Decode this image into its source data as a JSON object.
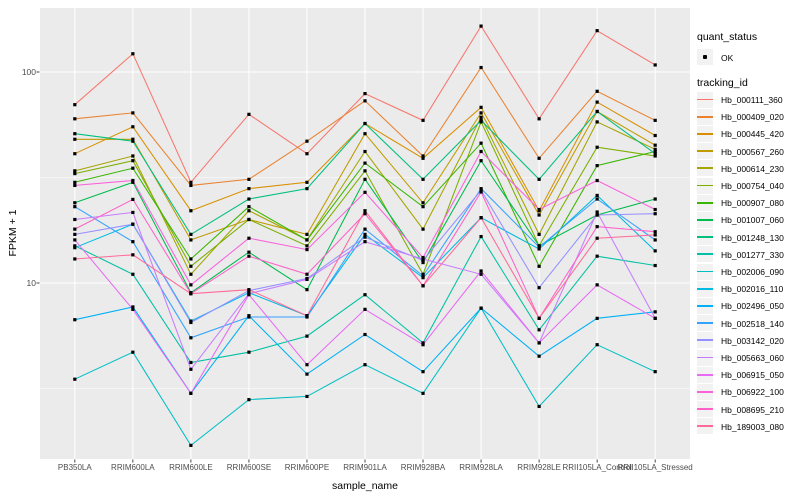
{
  "chart": {
    "y_axis": {
      "title": "FPKM + 1",
      "scale": "log10",
      "tick_labels": [
        "100",
        "10"
      ],
      "tick_values": [
        100,
        10
      ],
      "minor_gridline_values": [
        31.62,
        3.162
      ]
    },
    "x_axis": {
      "title": "sample_name"
    },
    "legend": {
      "quant_status": {
        "title": "quant_status",
        "items": [
          {
            "label": "OK",
            "marker": "black-point"
          }
        ]
      },
      "tracking_id": {
        "title": "tracking_id"
      }
    },
    "colors": {
      "panel_bg": "#EBEBEB",
      "grid": "#FFFFFF",
      "legend_key_bg": "#F2F2F2",
      "tick_label": "#4D4D4D",
      "axis_title": "#000000",
      "tick_mark": "#333333",
      "point_marker": "#000000"
    }
  },
  "chart_data": {
    "type": "line",
    "title": "",
    "xlabel": "sample_name",
    "ylabel": "FPKM + 1",
    "yscale": "log10",
    "ylim": [
      1.47,
      201
    ],
    "grid": true,
    "legend_position": "right",
    "point_marker": "small-black-square",
    "quant_status": "OK",
    "x": [
      "PB350LA",
      "RRIM600LA",
      "RRIM600LE",
      "RRIM600SE",
      "RRIM600PE",
      "RRIM901LA",
      "RRIM928BA",
      "RRIM928LA",
      "RRIM928LE",
      "RRII105LA_Control",
      "RRII105LA_Stressed"
    ],
    "series": [
      {
        "name": "Hb_000111_360",
        "color": "#F8766D",
        "values": [
          70,
          122,
          30,
          63,
          41,
          79,
          59,
          165,
          60,
          157,
          108
        ]
      },
      {
        "name": "Hb_000409_020",
        "color": "#EA8331",
        "values": [
          60,
          64,
          29,
          31,
          47,
          73,
          40,
          105,
          39,
          81,
          59
        ]
      },
      {
        "name": "Hb_000445_420",
        "color": "#D89000",
        "values": [
          41,
          55,
          22,
          28,
          30,
          57,
          39,
          68,
          22,
          72,
          50
        ]
      },
      {
        "name": "Hb_000567_260",
        "color": "#C09B00",
        "values": [
          48,
          48,
          16,
          20,
          17,
          51,
          24,
          64,
          21,
          65,
          45
        ]
      },
      {
        "name": "Hb_000614_230",
        "color": "#A3A500",
        "values": [
          34,
          40,
          11,
          22,
          16,
          42,
          18,
          61,
          17,
          58,
          43
        ]
      },
      {
        "name": "Hb_000754_040",
        "color": "#7CAE00",
        "values": [
          33,
          38,
          12,
          20,
          15,
          34,
          11,
          58,
          15,
          44,
          40
        ]
      },
      {
        "name": "Hb_000907_080",
        "color": "#39B600",
        "values": [
          30,
          35,
          13,
          23,
          16,
          37,
          23,
          46,
          12,
          36,
          42
        ]
      },
      {
        "name": "Hb_001007_060",
        "color": "#00BB4E",
        "values": [
          24,
          30,
          9,
          14,
          9.3,
          31,
          12.5,
          38,
          15,
          21,
          25
        ]
      },
      {
        "name": "Hb_001248_130",
        "color": "#00BF7D",
        "values": [
          51,
          47,
          17,
          25,
          28,
          57,
          31,
          59,
          31,
          65,
          41
        ]
      },
      {
        "name": "Hb_001277_330",
        "color": "#00C1A3",
        "values": [
          15,
          11,
          4.2,
          4.7,
          5.6,
          8.8,
          5.2,
          16.6,
          6.0,
          13.4,
          12.1
        ]
      },
      {
        "name": "Hb_002006_090",
        "color": "#00BFC4",
        "values": [
          3.5,
          4.7,
          1.7,
          2.8,
          2.9,
          4.1,
          3.0,
          7.6,
          2.6,
          5.1,
          3.8
        ]
      },
      {
        "name": "Hb_002016_110",
        "color": "#00BAE0",
        "values": [
          14.7,
          19,
          6.6,
          9.0,
          7.0,
          17,
          10.6,
          20.4,
          14.5,
          26,
          14.2
        ]
      },
      {
        "name": "Hb_002496_050",
        "color": "#00B0F6",
        "values": [
          6.7,
          7.7,
          3.0,
          7.0,
          3.7,
          5.7,
          3.8,
          7.6,
          4.5,
          6.8,
          7.3
        ]
      },
      {
        "name": "Hb_002518_140",
        "color": "#35A2FF",
        "values": [
          23,
          15.7,
          5.5,
          6.9,
          6.9,
          18,
          10.8,
          28,
          14.8,
          25,
          16
        ]
      },
      {
        "name": "Hb_003142_020",
        "color": "#9590FF",
        "values": [
          17,
          19,
          6.5,
          9.2,
          10.5,
          16.5,
          12.8,
          27.5,
          9.5,
          21,
          21.3
        ]
      },
      {
        "name": "Hb_005663_060",
        "color": "#C77CFF",
        "values": [
          20,
          21.6,
          3.9,
          8.9,
          10.4,
          15.7,
          13,
          11,
          5.2,
          21.7,
          6.8
        ]
      },
      {
        "name": "Hb_006915_050",
        "color": "#E76BF3",
        "values": [
          16,
          7.5,
          3.0,
          8.8,
          4.1,
          7.5,
          5.1,
          11.4,
          5.2,
          9.8,
          6.8
        ]
      },
      {
        "name": "Hb_006922_100",
        "color": "#FA62DB",
        "values": [
          29,
          30.6,
          9.8,
          16.3,
          14.4,
          26.9,
          13.2,
          42,
          22.3,
          30.6,
          22.3
        ]
      },
      {
        "name": "Hb_008695_210",
        "color": "#FF61C9",
        "values": [
          18,
          24.9,
          8.9,
          13.4,
          11.0,
          21.3,
          9.7,
          27,
          6.8,
          18.5,
          17.5
        ]
      },
      {
        "name": "Hb_189003_080",
        "color": "#FF6A98",
        "values": [
          13,
          13.6,
          8.9,
          9.3,
          7.0,
          22,
          9.7,
          20.4,
          6.8,
          16.3,
          16.9
        ]
      }
    ]
  }
}
